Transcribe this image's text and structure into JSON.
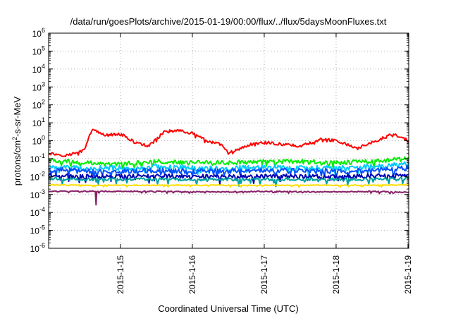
{
  "chart_data": {
    "type": "line",
    "title": "/data/run/goesPlots/archive/2015-01-19/00:00/flux/../flux/5daysMoonFluxes.txt",
    "xlabel": "Coordinated Universal Time (UTC)",
    "ylabel": "protons/cm2-s-sr-MeV",
    "ylabel_parts": {
      "before": "protons/cm",
      "sup": "2",
      "after": "-s-sr-MeV"
    },
    "y_scale": "log",
    "ylim": [
      1e-06,
      1000000.0
    ],
    "y_ticks": [
      {
        "exp": "-6",
        "value": 1e-06
      },
      {
        "exp": "-5",
        "value": 1e-05
      },
      {
        "exp": "-4",
        "value": 0.0001
      },
      {
        "exp": "-3",
        "value": 0.001
      },
      {
        "exp": "-2",
        "value": 0.01
      },
      {
        "exp": "-1",
        "value": 0.1
      },
      {
        "exp": "0",
        "value": 1
      },
      {
        "exp": "1",
        "value": 10.0
      },
      {
        "exp": "2",
        "value": 100.0
      },
      {
        "exp": "3",
        "value": 1000.0
      },
      {
        "exp": "4",
        "value": 10000.0
      },
      {
        "exp": "5",
        "value": 100000.0
      },
      {
        "exp": "6",
        "value": 1000000.0
      }
    ],
    "y_tick_base": "10",
    "xlim": [
      "2015-01-14 00:00",
      "2015-01-19 00:15"
    ],
    "x_ticks": [
      "2015-1-15",
      "2015-1-16",
      "2015-1-17",
      "2015-1-18",
      "2015-1-19"
    ],
    "grid": true,
    "legend": "none",
    "series": [
      {
        "color": "#ff0000",
        "x": [
          "2015-01-14 00:00",
          "2015-01-14 06:00",
          "2015-01-14 12:00",
          "2015-01-14 14:24",
          "2015-01-14 19:12",
          "2015-01-15 00:00",
          "2015-01-15 04:48",
          "2015-01-15 09:36",
          "2015-01-15 14:24",
          "2015-01-15 19:12",
          "2015-01-16 00:00",
          "2015-01-16 04:48",
          "2015-01-16 09:36",
          "2015-01-16 12:00",
          "2015-01-16 19:12",
          "2015-01-17 00:00",
          "2015-01-17 07:12",
          "2015-01-17 12:00",
          "2015-01-17 19:12",
          "2015-01-18 00:00",
          "2015-01-18 07:12",
          "2015-01-18 12:00",
          "2015-01-18 19:12",
          "2015-01-19 00:00",
          "2015-01-19 00:15"
        ],
        "values": [
          0.2,
          0.15,
          0.3,
          4.0,
          2.0,
          2.5,
          0.8,
          0.5,
          3.0,
          4.0,
          2.5,
          1.0,
          0.6,
          0.2,
          0.6,
          0.8,
          0.6,
          0.5,
          1.2,
          1.0,
          0.4,
          0.8,
          2.5,
          1.0,
          0.8
        ]
      },
      {
        "color": "#00ee00",
        "x": [
          "2015-01-14 00:00",
          "2015-01-14 12:00",
          "2015-01-15 00:00",
          "2015-01-15 12:00",
          "2015-01-16 00:00",
          "2015-01-16 12:00",
          "2015-01-17 00:00",
          "2015-01-17 12:00",
          "2015-01-18 00:00",
          "2015-01-18 12:00",
          "2015-01-19 00:00",
          "2015-01-19 00:15"
        ],
        "values": [
          0.08,
          0.06,
          0.05,
          0.07,
          0.06,
          0.06,
          0.07,
          0.07,
          0.06,
          0.07,
          0.1,
          0.12
        ]
      },
      {
        "color": "#00c8ff",
        "x": [
          "2015-01-14 00:00",
          "2015-01-14 12:00",
          "2015-01-15 00:00",
          "2015-01-15 12:00",
          "2015-01-16 00:00",
          "2015-01-16 12:00",
          "2015-01-17 00:00",
          "2015-01-17 12:00",
          "2015-01-18 00:00",
          "2015-01-18 12:00",
          "2015-01-19 00:00",
          "2015-01-19 00:15"
        ],
        "values": [
          0.035,
          0.03,
          0.03,
          0.035,
          0.03,
          0.03,
          0.035,
          0.03,
          0.03,
          0.035,
          0.05,
          0.06
        ]
      },
      {
        "color": "#0050ff",
        "x": [
          "2015-01-14 00:00",
          "2015-01-14 12:00",
          "2015-01-15 00:00",
          "2015-01-15 12:00",
          "2015-01-16 00:00",
          "2015-01-16 12:00",
          "2015-01-17 00:00",
          "2015-01-17 12:00",
          "2015-01-18 00:00",
          "2015-01-18 12:00",
          "2015-01-19 00:00",
          "2015-01-19 00:15"
        ],
        "values": [
          0.025,
          0.02,
          0.02,
          0.022,
          0.02,
          0.02,
          0.022,
          0.02,
          0.02,
          0.022,
          0.03,
          0.035
        ]
      },
      {
        "color": "#0000b4",
        "x": [
          "2015-01-14 00:00",
          "2015-01-14 12:00",
          "2015-01-15 00:00",
          "2015-01-15 12:00",
          "2015-01-16 00:00",
          "2015-01-16 12:00",
          "2015-01-17 00:00",
          "2015-01-17 12:00",
          "2015-01-18 00:00",
          "2015-01-18 12:00",
          "2015-01-19 00:00",
          "2015-01-19 00:15"
        ],
        "values": [
          0.012,
          0.01,
          0.01,
          0.011,
          0.01,
          0.01,
          0.011,
          0.01,
          0.01,
          0.011,
          0.012,
          0.013
        ]
      },
      {
        "color": "#00a0a0",
        "x": [
          "2015-01-14 00:00",
          "2015-01-14 12:00",
          "2015-01-15 00:00",
          "2015-01-15 12:00",
          "2015-01-16 00:00",
          "2015-01-16 12:00",
          "2015-01-17 00:00",
          "2015-01-17 12:00",
          "2015-01-18 00:00",
          "2015-01-18 12:00",
          "2015-01-19 00:00",
          "2015-01-19 00:15"
        ],
        "values": [
          0.008,
          0.007,
          0.007,
          0.007,
          0.007,
          0.007,
          0.007,
          0.007,
          0.007,
          0.007,
          0.008,
          0.008
        ]
      },
      {
        "color": "#ffdd00",
        "x": [
          "2015-01-14 00:00",
          "2015-01-14 12:00",
          "2015-01-15 00:00",
          "2015-01-15 12:00",
          "2015-01-16 00:00",
          "2015-01-16 12:00",
          "2015-01-17 00:00",
          "2015-01-17 12:00",
          "2015-01-18 00:00",
          "2015-01-18 12:00",
          "2015-01-19 00:00",
          "2015-01-19 00:15"
        ],
        "values": [
          0.0035,
          0.0033,
          0.0033,
          0.0033,
          0.0033,
          0.0033,
          0.0033,
          0.0033,
          0.0033,
          0.0033,
          0.0035,
          0.0035
        ]
      },
      {
        "color": "#882266",
        "x": [
          "2015-01-14 00:00",
          "2015-01-14 12:00",
          "2015-01-14 15:36",
          "2015-01-14 15:50",
          "2015-01-14 16:05",
          "2015-01-15 00:00",
          "2015-01-15 12:00",
          "2015-01-16 00:00",
          "2015-01-16 12:00",
          "2015-01-17 00:00",
          "2015-01-17 12:00",
          "2015-01-18 00:00",
          "2015-01-18 12:00",
          "2015-01-19 00:00",
          "2015-01-19 00:15"
        ],
        "values": [
          0.0015,
          0.0015,
          0.0015,
          0.00025,
          0.0015,
          0.0015,
          0.0015,
          0.0014,
          0.0014,
          0.0015,
          0.0014,
          0.0014,
          0.0015,
          0.0013,
          0.0013
        ]
      }
    ]
  }
}
